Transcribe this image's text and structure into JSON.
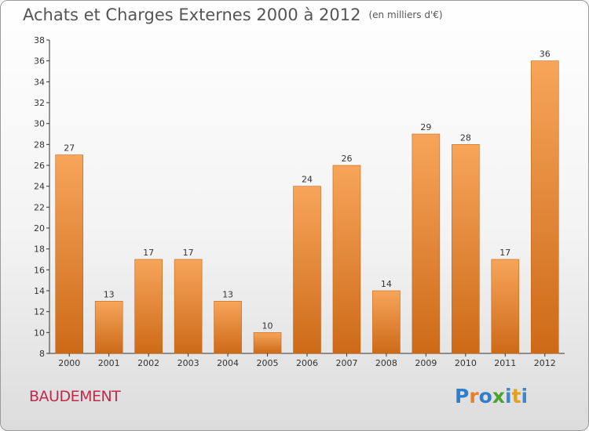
{
  "header": {
    "title": "Achats et Charges Externes 2000 à 2012",
    "unit": "(en milliers d'€)"
  },
  "footer": {
    "commune": "BAUDEMENT",
    "logo": "Proxiti"
  },
  "colors": {
    "bar_light": "#f7a55a",
    "bar_dark": "#cd6a18",
    "title": "#555555",
    "commune": "#c4284a"
  },
  "chart_data": {
    "type": "bar",
    "title": "Achats et Charges Externes 2000 à 2012",
    "subtitle": "(en milliers d'€)",
    "xlabel": "",
    "ylabel": "",
    "categories": [
      "2000",
      "2001",
      "2002",
      "2003",
      "2004",
      "2005",
      "2006",
      "2007",
      "2008",
      "2009",
      "2010",
      "2011",
      "2012"
    ],
    "values": [
      27,
      13,
      17,
      17,
      13,
      10,
      24,
      26,
      14,
      29,
      28,
      17,
      36
    ],
    "ylim": [
      8,
      38
    ],
    "yticks": [
      8,
      10,
      12,
      14,
      16,
      18,
      20,
      22,
      24,
      26,
      28,
      30,
      32,
      34,
      36,
      38
    ],
    "grid": false,
    "data_labels": true
  }
}
